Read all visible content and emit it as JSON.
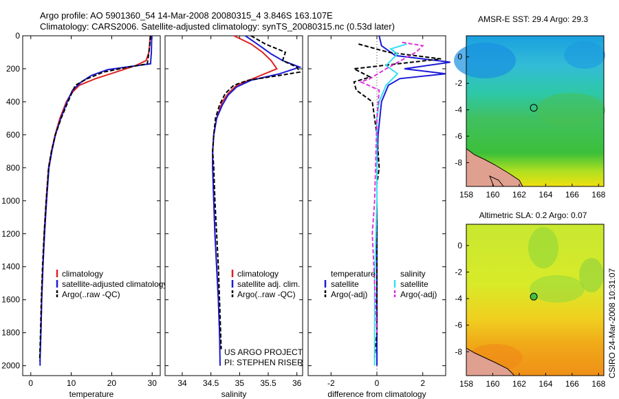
{
  "figure": {
    "title_line1": "Argo profile: AO 5901360_54 14-Mar-2008 20080315_4 3.846S 163.107E",
    "title_line2": "Climatology: CARS2006. Satellite-adjusted climatology: synTS_20080315.nc (0.53d later)",
    "credit": "CSIRO 24-Mar-2008 10:31:07",
    "colors": {
      "climatology": "#e02020",
      "satellite": "#1a1ad6",
      "argo": "#000000",
      "sat_salinity": "#33e0f0",
      "argo_salinity": "#e030e0"
    }
  },
  "chart_data": [
    {
      "id": "temperature",
      "type": "line",
      "xlabel": "temperature",
      "ylabel": "",
      "xlim": [
        -2,
        32
      ],
      "ylim": [
        2060,
        0
      ],
      "xticks": [
        0,
        10,
        20,
        30
      ],
      "yticks": [
        0,
        200,
        400,
        600,
        800,
        1000,
        1200,
        1400,
        1600,
        1800,
        2000
      ],
      "legend": [
        "climatology",
        "satellite-adjusted climatology",
        "Argo(..raw -QC)"
      ],
      "series": [
        {
          "name": "climatology",
          "style": "solid",
          "color": "#e02020",
          "points": [
            [
              29.5,
              0
            ],
            [
              29.4,
              50
            ],
            [
              29.2,
              100
            ],
            [
              28.5,
              150
            ],
            [
              26,
              180
            ],
            [
              21,
              220
            ],
            [
              16,
              260
            ],
            [
              12,
              300
            ],
            [
              10,
              350
            ],
            [
              8.8,
              400
            ],
            [
              7.2,
              500
            ],
            [
              6,
              600
            ],
            [
              5.1,
              700
            ],
            [
              4.4,
              800
            ],
            [
              3.8,
              1000
            ],
            [
              3.3,
              1200
            ],
            [
              3,
              1400
            ],
            [
              2.7,
              1600
            ],
            [
              2.5,
              1800
            ]
          ]
        },
        {
          "name": "satellite-adjusted climatology",
          "style": "solid",
          "color": "#1a1ad6",
          "points": [
            [
              29.9,
              0
            ],
            [
              29.8,
              100
            ],
            [
              29.6,
              170
            ],
            [
              25,
              185
            ],
            [
              19,
              205
            ],
            [
              15,
              240
            ],
            [
              12.5,
              280
            ],
            [
              10.3,
              330
            ],
            [
              9,
              400
            ],
            [
              7.4,
              500
            ],
            [
              6.1,
              600
            ],
            [
              5.2,
              700
            ],
            [
              4.5,
              800
            ],
            [
              3.9,
              1000
            ],
            [
              3.4,
              1200
            ],
            [
              3,
              1400
            ],
            [
              2.7,
              1600
            ],
            [
              2.5,
              1800
            ],
            [
              2.3,
              1950
            ],
            [
              2.3,
              2000
            ]
          ]
        },
        {
          "name": "Argo(..raw -QC)",
          "style": "dashed",
          "color": "#000000",
          "points": [
            [
              29.6,
              0
            ],
            [
              29.2,
              100
            ],
            [
              28.8,
              170
            ],
            [
              24,
              190
            ],
            [
              18,
              220
            ],
            [
              14,
              260
            ],
            [
              11,
              300
            ],
            [
              9.2,
              400
            ],
            [
              7.5,
              500
            ],
            [
              6.1,
              600
            ],
            [
              5.1,
              700
            ],
            [
              4.4,
              800
            ],
            [
              3.8,
              1000
            ],
            [
              3.3,
              1200
            ],
            [
              2.9,
              1400
            ],
            [
              2.6,
              1600
            ],
            [
              2.4,
              1800
            ],
            [
              2.2,
              1970
            ]
          ]
        }
      ]
    },
    {
      "id": "salinity",
      "type": "line",
      "xlabel": "salinity",
      "ylabel": "",
      "xlim": [
        33.7,
        36.1
      ],
      "ylim": [
        2060,
        0
      ],
      "xticks": [
        34,
        34.5,
        35,
        35.5,
        36
      ],
      "legend": [
        "climatology",
        "satellite adj. clim.",
        "Argo(..raw -QC)"
      ],
      "annotation": [
        "US ARGO PROJECT",
        "PI: STEPHEN RISER"
      ],
      "series": [
        {
          "name": "climatology",
          "style": "solid",
          "color": "#e02020",
          "points": [
            [
              34.9,
              0
            ],
            [
              35.2,
              50
            ],
            [
              35.4,
              100
            ],
            [
              35.55,
              150
            ],
            [
              35.65,
              200
            ],
            [
              35.3,
              250
            ],
            [
              34.95,
              300
            ],
            [
              34.8,
              350
            ],
            [
              34.7,
              400
            ],
            [
              34.6,
              500
            ],
            [
              34.55,
              600
            ],
            [
              34.53,
              700
            ],
            [
              34.53,
              800
            ],
            [
              34.55,
              1000
            ],
            [
              34.57,
              1200
            ],
            [
              34.6,
              1400
            ],
            [
              34.63,
              1600
            ],
            [
              34.65,
              1800
            ],
            [
              34.66,
              1900
            ]
          ]
        },
        {
          "name": "satellite adj. clim.",
          "style": "solid",
          "color": "#1a1ad6",
          "points": [
            [
              35.1,
              0
            ],
            [
              35.35,
              60
            ],
            [
              35.55,
              110
            ],
            [
              35.75,
              150
            ],
            [
              36.05,
              190
            ],
            [
              35.7,
              230
            ],
            [
              35.2,
              270
            ],
            [
              34.95,
              310
            ],
            [
              34.8,
              360
            ],
            [
              34.7,
              420
            ],
            [
              34.6,
              500
            ],
            [
              34.55,
              600
            ],
            [
              34.53,
              700
            ],
            [
              34.53,
              800
            ],
            [
              34.55,
              1000
            ],
            [
              34.57,
              1200
            ],
            [
              34.6,
              1400
            ],
            [
              34.63,
              1600
            ],
            [
              34.65,
              1800
            ],
            [
              34.66,
              2000
            ]
          ]
        },
        {
          "name": "Argo(..raw -QC)",
          "style": "dashed",
          "color": "#000000",
          "points": [
            [
              35.2,
              0
            ],
            [
              35.45,
              50
            ],
            [
              35.8,
              100
            ],
            [
              35.75,
              150
            ],
            [
              36.0,
              190
            ],
            [
              36.05,
              220
            ],
            [
              35.7,
              240
            ],
            [
              35.15,
              270
            ],
            [
              34.9,
              300
            ],
            [
              34.75,
              350
            ],
            [
              34.65,
              420
            ],
            [
              34.58,
              500
            ],
            [
              34.55,
              600
            ],
            [
              34.53,
              700
            ],
            [
              34.55,
              800
            ],
            [
              34.57,
              1000
            ],
            [
              34.6,
              1200
            ],
            [
              34.63,
              1400
            ],
            [
              34.65,
              1600
            ],
            [
              34.67,
              1800
            ],
            [
              34.68,
              1900
            ]
          ]
        }
      ]
    },
    {
      "id": "difference",
      "type": "line",
      "xlabel": "difference from climatology",
      "xlim": [
        -3,
        3
      ],
      "ylim": [
        2060,
        0
      ],
      "xticks": [
        -2,
        0,
        2
      ],
      "legend_group_1": {
        "title": "temperature",
        "items": [
          "satellite",
          "Argo(-adj)"
        ]
      },
      "legend_group_2": {
        "title": "salinity",
        "items": [
          "satellite",
          "Argo(-adj)"
        ]
      },
      "series": [
        {
          "name": "temperature satellite",
          "style": "solid",
          "color": "#1a1ad6",
          "points": [
            [
              0.1,
              0
            ],
            [
              0.2,
              60
            ],
            [
              0.8,
              120
            ],
            [
              3.2,
              160
            ],
            [
              1.2,
              200
            ],
            [
              3.0,
              230
            ],
            [
              1.0,
              260
            ],
            [
              0.5,
              300
            ],
            [
              0.2,
              400
            ],
            [
              0.05,
              600
            ],
            [
              0,
              800
            ],
            [
              0,
              1000
            ],
            [
              0,
              1500
            ],
            [
              0,
              2000
            ]
          ]
        },
        {
          "name": "temperature Argo(-adj)",
          "style": "dashed",
          "color": "#000000",
          "points": [
            [
              -0.8,
              50
            ],
            [
              0.5,
              100
            ],
            [
              2.8,
              140
            ],
            [
              -1.0,
              200
            ],
            [
              -0.3,
              250
            ],
            [
              -1.0,
              280
            ],
            [
              -0.9,
              330
            ],
            [
              -0.2,
              400
            ],
            [
              0,
              600
            ],
            [
              0.1,
              800
            ],
            [
              0,
              900
            ],
            [
              0,
              1200
            ],
            [
              0,
              1800
            ],
            [
              -0.1,
              1950
            ]
          ]
        },
        {
          "name": "salinity satellite",
          "style": "solid",
          "color": "#33e0f0",
          "points": [
            [
              1.3,
              50
            ],
            [
              0.6,
              80
            ],
            [
              0.9,
              110
            ],
            [
              0.4,
              180
            ],
            [
              0.9,
              230
            ],
            [
              0.4,
              300
            ],
            [
              0.1,
              400
            ],
            [
              0,
              500
            ],
            [
              0,
              1000
            ],
            [
              -0.1,
              1500
            ],
            [
              -0.1,
              2000
            ]
          ]
        },
        {
          "name": "salinity Argo(-adj)",
          "style": "dashed",
          "color": "#e030e0",
          "points": [
            [
              1.1,
              40
            ],
            [
              2.0,
              60
            ],
            [
              1.7,
              100
            ],
            [
              0.4,
              200
            ],
            [
              -0.3,
              260
            ],
            [
              -0.7,
              280
            ],
            [
              0.1,
              330
            ],
            [
              0,
              500
            ],
            [
              -0.1,
              1000
            ],
            [
              -0.2,
              1200
            ],
            [
              -0.1,
              1500
            ],
            [
              0,
              1800
            ]
          ]
        }
      ]
    },
    {
      "id": "sst-map",
      "type": "heatmap",
      "title": "AMSR-E SST: 29.4  Argo: 29.3",
      "xlim": [
        158,
        168.4
      ],
      "ylim": [
        -9.8,
        1.6
      ],
      "xticks": [
        158,
        160,
        162,
        164,
        166,
        168
      ],
      "yticks": [
        -8,
        -6,
        -4,
        -2,
        0
      ],
      "marker": {
        "lon": 163.1,
        "lat": -3.85,
        "filled": false
      }
    },
    {
      "id": "sla-map",
      "type": "heatmap",
      "title": "Altimetric SLA: 0.2  Argo: 0.07",
      "xlim": [
        158,
        168.4
      ],
      "ylim": [
        -9.8,
        1.6
      ],
      "xticks": [
        158,
        160,
        162,
        164,
        166,
        168
      ],
      "yticks": [
        -8,
        -6,
        -4,
        -2,
        0
      ],
      "marker": {
        "lon": 163.1,
        "lat": -3.85,
        "filled": true
      }
    }
  ]
}
